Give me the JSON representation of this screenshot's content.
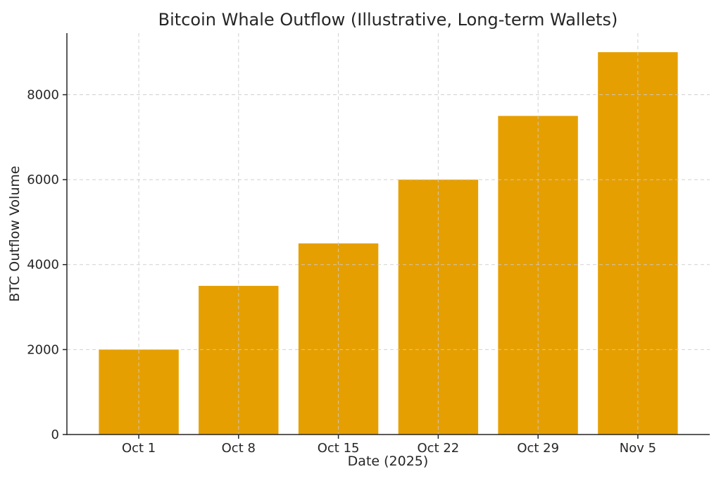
{
  "chart_data": {
    "type": "bar",
    "title": "Bitcoin Whale Outflow (Illustrative, Long-term Wallets)",
    "xlabel": "Date (2025)",
    "ylabel": "BTC Outflow Volume",
    "categories": [
      "Oct 1",
      "Oct 8",
      "Oct 15",
      "Oct 22",
      "Oct 29",
      "Nov 5"
    ],
    "values": [
      2000,
      3500,
      4500,
      6000,
      7500,
      9000
    ],
    "ylim": [
      0,
      9450
    ],
    "yticks": [
      0,
      2000,
      4000,
      6000,
      8000
    ],
    "legend": "none",
    "grid": "dashed gridlines on both axes, drawn above bars",
    "colors": {
      "bar": "#E69F00",
      "grid": "#CCCCCC",
      "axis": "#262626",
      "text": "#262626",
      "background": "#FFFFFF"
    }
  }
}
